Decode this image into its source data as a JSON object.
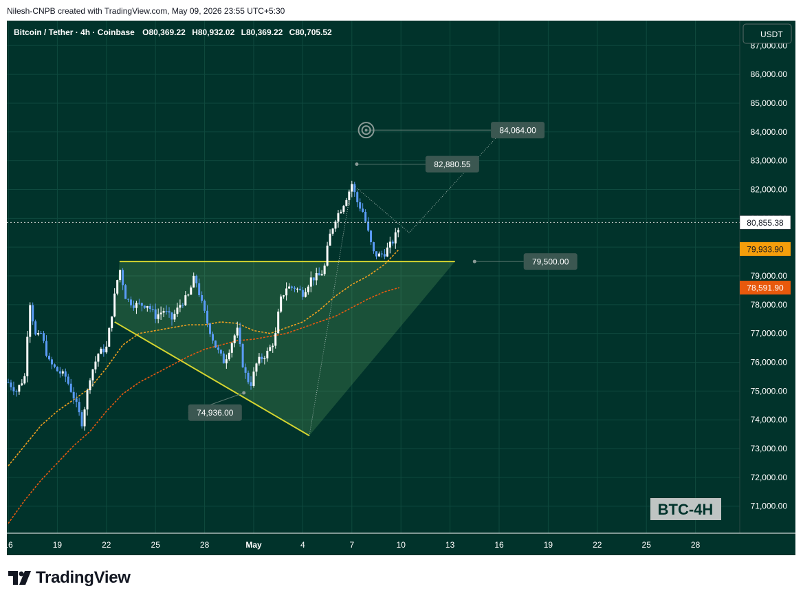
{
  "header": {
    "credit": "Nilesh-CNPB created with TradingView.com, May 09, 2026 23:55 UTC+5:30"
  },
  "colors": {
    "background": "#01332b",
    "bull_candle": "#ffffff",
    "bear_candle": "#5b9cf6",
    "pattern_line": "#d5d530",
    "ema_fast": "#f0a020",
    "ema_slow": "#e85a10",
    "last_price_label": "#ffffff",
    "ema_fast_label": "#f59e0b",
    "ema_slow_label": "#e8590c"
  },
  "brand": {
    "logo_text": "TradingView"
  },
  "chart_data": {
    "type": "candlestick",
    "symbol": "Bitcoin / Tether",
    "timeframe": "4h",
    "exchange": "Coinbase",
    "legend": {
      "title": "Bitcoin / Tether · 4h · Coinbase",
      "open": "O80,369.22",
      "high": "H80,932.02",
      "low": "L80,369.22",
      "close": "C80,705.52"
    },
    "currency": "USDT",
    "watermark": "BTC-4H",
    "ylim": [
      70300,
      87700
    ],
    "y_ticks": [
      "87,000.00",
      "86,000.00",
      "85,000.00",
      "84,000.00",
      "83,000.00",
      "82,000.00",
      "81,000.00",
      "80,000.00",
      "79,000.00",
      "78,000.00",
      "77,000.00",
      "76,000.00",
      "75,000.00",
      "74,000.00",
      "73,000.00",
      "72,000.00",
      "71,000.00"
    ],
    "x_ticks": [
      {
        "label": "16",
        "day": 16
      },
      {
        "label": "19",
        "day": 19
      },
      {
        "label": "22",
        "day": 22
      },
      {
        "label": "25",
        "day": 25
      },
      {
        "label": "28",
        "day": 28
      },
      {
        "label": "May",
        "day": 31
      },
      {
        "label": "4",
        "day": 34
      },
      {
        "label": "7",
        "day": 37
      },
      {
        "label": "10",
        "day": 40
      },
      {
        "label": "13",
        "day": 43
      },
      {
        "label": "16",
        "day": 46
      },
      {
        "label": "19",
        "day": 49
      },
      {
        "label": "22",
        "day": 52
      },
      {
        "label": "25",
        "day": 55
      },
      {
        "label": "28",
        "day": 58
      }
    ],
    "price_path": [
      [
        16.0,
        75300
      ],
      [
        16.5,
        75000
      ],
      [
        17.0,
        75500
      ],
      [
        17.3,
        78200
      ],
      [
        17.7,
        76800
      ],
      [
        18.0,
        77000
      ],
      [
        18.5,
        76000
      ],
      [
        19.0,
        75700
      ],
      [
        19.5,
        75500
      ],
      [
        20.0,
        74800
      ],
      [
        20.5,
        73900
      ],
      [
        21.0,
        75500
      ],
      [
        21.5,
        76300
      ],
      [
        22.0,
        76500
      ],
      [
        22.5,
        78300
      ],
      [
        22.8,
        79300
      ],
      [
        23.2,
        78200
      ],
      [
        23.7,
        78000
      ],
      [
        24.5,
        78000
      ],
      [
        25.0,
        77600
      ],
      [
        25.5,
        77800
      ],
      [
        26.0,
        77500
      ],
      [
        26.5,
        78000
      ],
      [
        27.0,
        78300
      ],
      [
        27.4,
        79000
      ],
      [
        27.8,
        78100
      ],
      [
        28.2,
        77300
      ],
      [
        28.7,
        76500
      ],
      [
        29.2,
        76000
      ],
      [
        29.8,
        76900
      ],
      [
        30.0,
        77100
      ],
      [
        30.4,
        75700
      ],
      [
        30.8,
        75200
      ],
      [
        31.2,
        76000
      ],
      [
        31.8,
        76300
      ],
      [
        32.3,
        76800
      ],
      [
        32.6,
        78100
      ],
      [
        33.0,
        78600
      ],
      [
        33.5,
        78600
      ],
      [
        34.0,
        78400
      ],
      [
        34.5,
        78900
      ],
      [
        35.0,
        79000
      ],
      [
        35.3,
        79200
      ],
      [
        35.6,
        80300
      ],
      [
        36.0,
        81000
      ],
      [
        36.4,
        81400
      ],
      [
        36.8,
        81900
      ],
      [
        37.0,
        82200
      ],
      [
        37.3,
        81600
      ],
      [
        37.7,
        81200
      ],
      [
        38.0,
        80500
      ],
      [
        38.3,
        79800
      ],
      [
        38.6,
        79700
      ],
      [
        39.0,
        79800
      ],
      [
        39.5,
        80200
      ],
      [
        39.9,
        80700
      ]
    ],
    "series": [
      {
        "name": "EMA fast",
        "points": [
          [
            16,
            72400
          ],
          [
            17,
            73100
          ],
          [
            18,
            73800
          ],
          [
            19,
            74300
          ],
          [
            20,
            74700
          ],
          [
            21,
            75100
          ],
          [
            22,
            75800
          ],
          [
            23,
            76600
          ],
          [
            24,
            77000
          ],
          [
            25,
            77100
          ],
          [
            26,
            77200
          ],
          [
            27,
            77300
          ],
          [
            28,
            77300
          ],
          [
            29,
            77400
          ],
          [
            30,
            77350
          ],
          [
            31,
            77100
          ],
          [
            32,
            77000
          ],
          [
            33,
            77200
          ],
          [
            34,
            77400
          ],
          [
            35,
            77800
          ],
          [
            36,
            78300
          ],
          [
            37,
            78700
          ],
          [
            38,
            79000
          ],
          [
            39,
            79400
          ],
          [
            39.9,
            79934
          ]
        ]
      },
      {
        "name": "EMA slow",
        "points": [
          [
            16,
            70400
          ],
          [
            17,
            71200
          ],
          [
            18,
            71900
          ],
          [
            19,
            72500
          ],
          [
            20,
            73100
          ],
          [
            21,
            73600
          ],
          [
            22,
            74300
          ],
          [
            23,
            74900
          ],
          [
            24,
            75300
          ],
          [
            25,
            75600
          ],
          [
            26,
            75900
          ],
          [
            27,
            76200
          ],
          [
            28,
            76450
          ],
          [
            29,
            76600
          ],
          [
            30,
            76750
          ],
          [
            31,
            76800
          ],
          [
            32,
            76900
          ],
          [
            33,
            77000
          ],
          [
            34,
            77200
          ],
          [
            35,
            77400
          ],
          [
            36,
            77600
          ],
          [
            37,
            77900
          ],
          [
            38,
            78200
          ],
          [
            39,
            78450
          ],
          [
            39.9,
            78592
          ]
        ]
      }
    ],
    "price_labels": [
      {
        "value": "80,855.38",
        "kind": "last"
      },
      {
        "value": "79,933.90",
        "kind": "ema_fast"
      },
      {
        "value": "78,591.90",
        "kind": "ema_slow"
      }
    ],
    "annotations": [
      {
        "label": "84,064.00",
        "price": 84064,
        "anchor_day": 38.0,
        "box_day": 45.5,
        "kind": "target"
      },
      {
        "label": "82,880.55",
        "price": 82880,
        "anchor_day": 37.3,
        "box_day": 41.5,
        "kind": "high"
      },
      {
        "label": "79,500.00",
        "price": 79500,
        "anchor_day": 44.5,
        "box_day": 47.5,
        "kind": "resistance"
      },
      {
        "label": "74,936.00",
        "price": 74936,
        "anchor_day": 30.4,
        "box_day": 27.0,
        "box_price": 74250,
        "kind": "low"
      }
    ],
    "pattern": {
      "top": [
        [
          22.8,
          79500
        ],
        [
          43.3,
          79500
        ]
      ],
      "bottom": [
        [
          22.5,
          77400
        ],
        [
          34.4,
          73450
        ]
      ],
      "apex": [
        43.3,
        79500
      ]
    },
    "projection": [
      [
        34.4,
        73450
      ],
      [
        37.0,
        82200
      ],
      [
        40.5,
        80500
      ],
      [
        46.3,
        84100
      ]
    ]
  }
}
